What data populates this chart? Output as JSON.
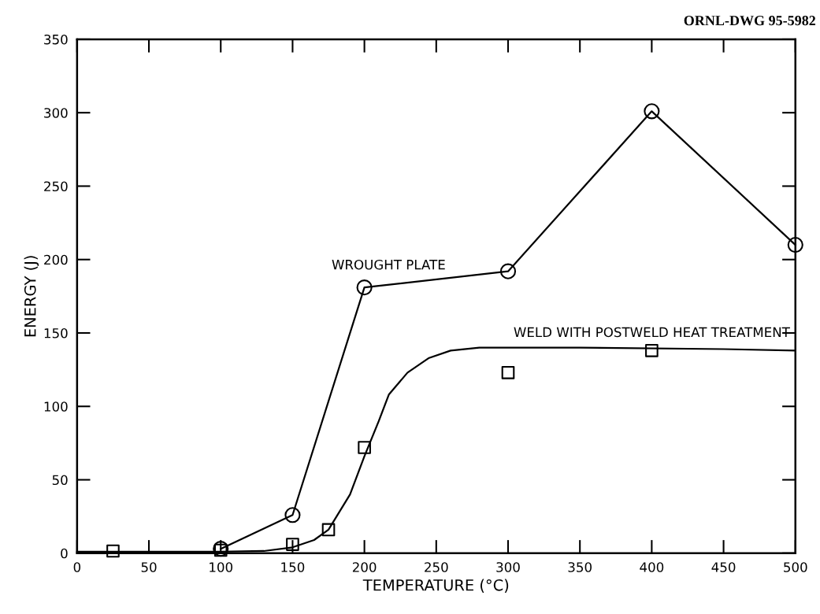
{
  "chart_data": {
    "type": "line",
    "xlabel": "TEMPERATURE (°C)",
    "ylabel": "ENERGY (J)",
    "annotations": [
      "ORNL-DWG 95-5982"
    ],
    "xlim": [
      0,
      500
    ],
    "ylim": [
      0,
      350
    ],
    "xticks": [
      0,
      50,
      100,
      150,
      200,
      250,
      300,
      350,
      400,
      450,
      500
    ],
    "yticks": [
      0,
      50,
      100,
      150,
      200,
      250,
      300,
      350
    ],
    "grid": false,
    "legend": false,
    "series": [
      {
        "name": "WROUGHT PLATE",
        "marker": "circle",
        "color": "#000000",
        "x": [
          100,
          150,
          200,
          300,
          400,
          500
        ],
        "values": [
          3,
          26,
          181,
          192,
          301,
          210
        ]
      },
      {
        "name": "WELD WITH POSTWELD HEAT TREATMENT",
        "type": "scatter",
        "marker": "square",
        "color": "#000000",
        "x": [
          25,
          100,
          150,
          175,
          200,
          300,
          400
        ],
        "values": [
          1.5,
          2,
          6,
          16,
          72,
          123,
          138
        ]
      },
      {
        "type": "line",
        "marker": "none",
        "color": "#000000",
        "x": [
          0,
          100,
          130,
          150,
          165,
          175,
          190,
          200,
          210,
          217,
          230,
          245,
          260,
          280,
          350,
          450,
          500
        ],
        "values": [
          1,
          1,
          1.5,
          4,
          9,
          16,
          40,
          66,
          90,
          108,
          123,
          133,
          138,
          140,
          140,
          139,
          138
        ]
      }
    ]
  }
}
